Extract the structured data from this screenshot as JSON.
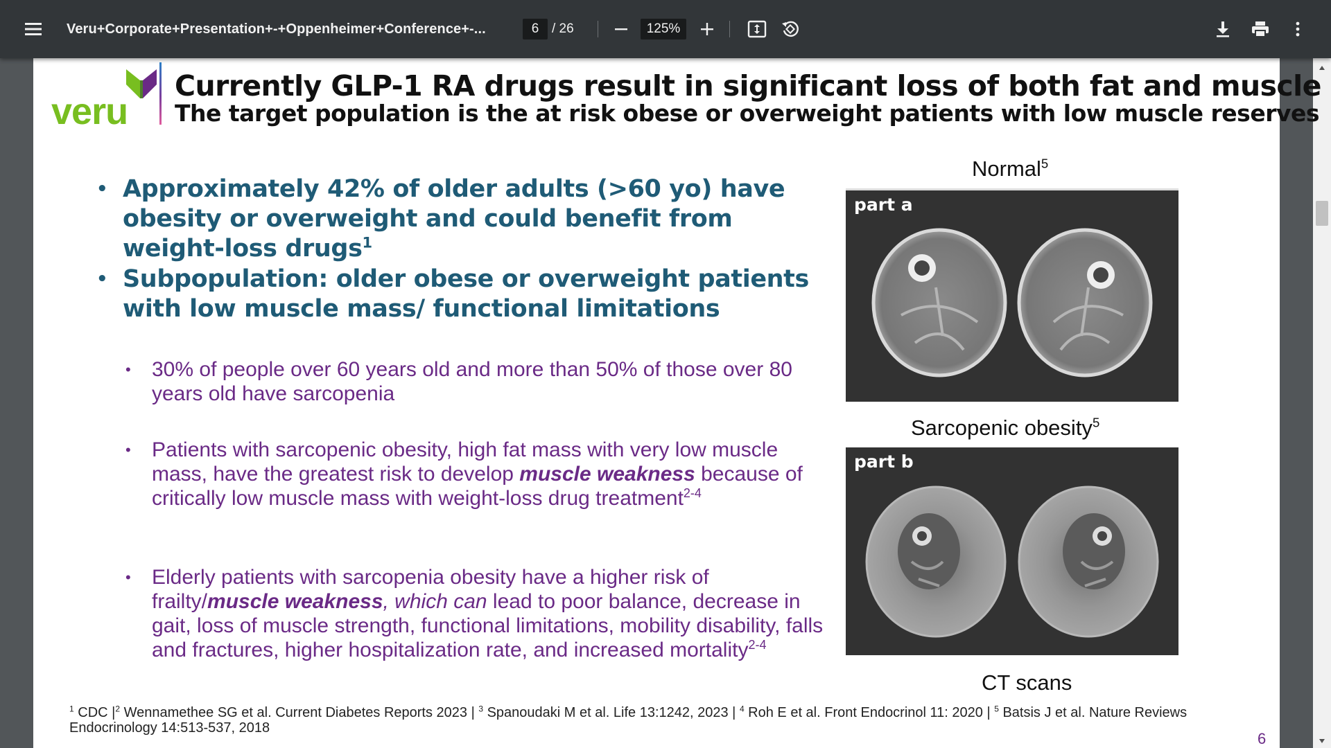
{
  "toolbar": {
    "title": "Veru+Corporate+Presentation+-+Oppenheimer+Conference+-...",
    "current_page": "6",
    "total_pages": "/ 26",
    "zoom": "125%"
  },
  "slide": {
    "logo_text": "veru",
    "title": "Currently GLP-1 RA drugs result in significant loss of both fat and muscle",
    "subtitle": "The target population is the at risk obese or overweight patients with low muscle reserves",
    "bullets_main": [
      {
        "text": "Approximately 42% of older adults (>60 yo) have obesity or overweight and could benefit from weight-loss drugs",
        "sup": "1"
      },
      {
        "text": "Subpopulation: older obese or overweight patients with low muscle mass/ functional limitations"
      }
    ],
    "bullets_sub": [
      {
        "text": "30% of people over 60 years old and more than 50% of those over 80 years old have sarcopenia"
      },
      {
        "pre": "Patients with sarcopenic obesity, high fat mass with very low muscle mass, have the greatest risk to develop ",
        "em": "muscle weakness",
        "post": " because of critically low muscle mass with weight-loss drug treatment",
        "sup": "2-4"
      },
      {
        "pre": "Elderly patients with sarcopenia obesity have a higher risk of frailty/",
        "em": "muscle weakness",
        "italic": ", which can",
        "post": " lead to poor balance, decrease in gait, loss of muscle strength, functional limitations, mobility disability, falls and fractures, higher hospitalization rate, and increased mortality",
        "sup": "2-4"
      }
    ],
    "images": {
      "normal_caption": "Normal",
      "normal_sup": "5",
      "part_a_label": "part a",
      "sarcopenic_caption": "Sarcopenic obesity",
      "sarcopenic_sup": "5",
      "part_b_label": "part b",
      "ct_caption": "CT scans"
    },
    "footnote": {
      "s1": "1",
      "t1": " CDC  |",
      "s2": "2",
      "t2": " Wennamethee SG et al. Current Diabetes Reports 2023 | ",
      "s3": "3",
      "t3": " Spanoudaki M et al. Life 13:1242, 2023 | ",
      "s4": "4",
      "t4": " Roh E et al. Front Endocrinol 11: 2020 | ",
      "s5": "5",
      "t5": " Batsis J et al. Nature Reviews Endocrinology 14:513-537, 2018"
    },
    "page_number": "6"
  },
  "colors": {
    "toolbar_bg": "#323639",
    "viewer_bg": "#525659",
    "heading_teal": "#1f5b76",
    "body_purple": "#6a2a86",
    "logo_green": "#78be20"
  },
  "icons": [
    "menu-icon",
    "zoom-out-icon",
    "zoom-in-icon",
    "fit-page-icon",
    "rotate-icon",
    "download-icon",
    "print-icon",
    "more-vert-icon"
  ]
}
